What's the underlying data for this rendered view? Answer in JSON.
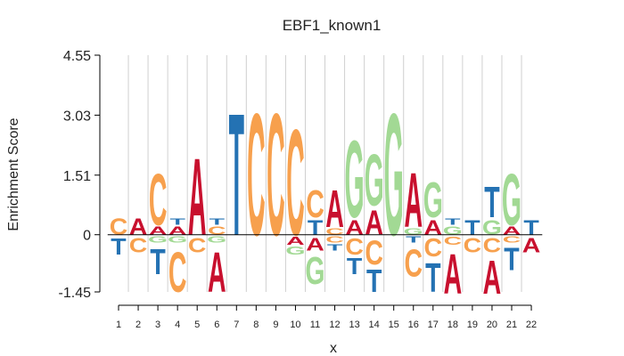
{
  "chart_data": {
    "type": "sequence-logo",
    "title": "EBF1_known1",
    "xlabel": "x",
    "ylabel": "Enrichment Score",
    "ylim": [
      -1.45,
      4.55
    ],
    "yticks": [
      "4.55",
      "3.03",
      "1.51",
      "0",
      "-1.45"
    ],
    "ytick_values": [
      4.55,
      3.03,
      1.51,
      0,
      -1.45
    ],
    "grid": "vertical",
    "colors": {
      "A": "#c8102e",
      "C": "#f7a04d",
      "G": "#a2d994",
      "T": "#2472b3"
    },
    "positions": [
      {
        "x": "1",
        "pos": [
          {
            "b": "C",
            "h": 0.5
          }
        ],
        "neg": [
          {
            "b": "T",
            "h": 0.5
          }
        ]
      },
      {
        "x": "2",
        "pos": [
          {
            "b": "A",
            "h": 0.5
          }
        ],
        "neg": [
          {
            "b": "C",
            "h": 0.45
          }
        ]
      },
      {
        "x": "3",
        "pos": [
          {
            "b": "A",
            "h": 0.25
          },
          {
            "b": "C",
            "h": 1.6
          }
        ],
        "neg": [
          {
            "b": "G",
            "h": 0.2
          },
          {
            "b": "T",
            "h": 0.8
          }
        ]
      },
      {
        "x": "4",
        "pos": [
          {
            "b": "A",
            "h": 0.25
          },
          {
            "b": "T",
            "h": 0.2
          }
        ],
        "neg": [
          {
            "b": "G",
            "h": 0.2
          },
          {
            "b": "C",
            "h": 1.25
          }
        ]
      },
      {
        "x": "5",
        "pos": [
          {
            "b": "A",
            "h": 2.4
          }
        ],
        "neg": [
          {
            "b": "C",
            "h": 0.45
          }
        ]
      },
      {
        "x": "6",
        "pos": [
          {
            "b": "C",
            "h": 0.25
          },
          {
            "b": "T",
            "h": 0.2
          }
        ],
        "neg": [
          {
            "b": "G",
            "h": 0.2
          },
          {
            "b": "A",
            "h": 1.25
          }
        ]
      },
      {
        "x": "7",
        "pos": [
          {
            "b": "T",
            "h": 3.8
          }
        ],
        "neg": []
      },
      {
        "x": "8",
        "pos": [
          {
            "b": "C",
            "h": 3.8
          }
        ],
        "neg": []
      },
      {
        "x": "9",
        "pos": [
          {
            "b": "C",
            "h": 3.8
          }
        ],
        "neg": []
      },
      {
        "x": "10",
        "pos": [
          {
            "b": "C",
            "h": 3.3
          }
        ],
        "neg": [
          {
            "b": "A",
            "h": 0.25
          },
          {
            "b": "G",
            "h": 0.25
          }
        ]
      },
      {
        "x": "11",
        "pos": [
          {
            "b": "T",
            "h": 0.45
          },
          {
            "b": "C",
            "h": 0.85
          }
        ],
        "neg": [
          {
            "b": "A",
            "h": 0.4
          },
          {
            "b": "G",
            "h": 0.85
          }
        ]
      },
      {
        "x": "12",
        "pos": [
          {
            "b": "C",
            "h": 0.2
          },
          {
            "b": "A",
            "h": 1.15
          }
        ],
        "neg": [
          {
            "b": "C",
            "h": 0.2
          },
          {
            "b": "T",
            "h": 0.2
          }
        ]
      },
      {
        "x": "13",
        "pos": [
          {
            "b": "A",
            "h": 0.45
          },
          {
            "b": "G",
            "h": 2.4
          }
        ],
        "neg": [
          {
            "b": "C",
            "h": 0.5
          },
          {
            "b": "T",
            "h": 0.5
          }
        ]
      },
      {
        "x": "14",
        "pos": [
          {
            "b": "A",
            "h": 0.75
          },
          {
            "b": "G",
            "h": 1.6
          }
        ],
        "neg": [
          {
            "b": "C",
            "h": 0.75
          },
          {
            "b": "T",
            "h": 0.7
          }
        ]
      },
      {
        "x": "15",
        "pos": [
          {
            "b": "G",
            "h": 3.8
          }
        ],
        "neg": []
      },
      {
        "x": "16",
        "pos": [
          {
            "b": "G",
            "h": 0.2
          },
          {
            "b": "A",
            "h": 1.7
          }
        ],
        "neg": [
          {
            "b": "T",
            "h": 0.2
          },
          {
            "b": "C",
            "h": 0.85
          }
        ]
      },
      {
        "x": "17",
        "pos": [
          {
            "b": "A",
            "h": 0.45
          },
          {
            "b": "G",
            "h": 1.1
          }
        ],
        "neg": [
          {
            "b": "C",
            "h": 0.55
          },
          {
            "b": "T",
            "h": 0.9
          }
        ]
      },
      {
        "x": "18",
        "pos": [
          {
            "b": "G",
            "h": 0.25
          },
          {
            "b": "T",
            "h": 0.2
          }
        ],
        "neg": [
          {
            "b": "C",
            "h": 0.25
          },
          {
            "b": "A",
            "h": 1.25
          }
        ]
      },
      {
        "x": "19",
        "pos": [
          {
            "b": "T",
            "h": 0.45
          }
        ],
        "neg": [
          {
            "b": "C",
            "h": 0.45
          }
        ]
      },
      {
        "x": "20",
        "pos": [
          {
            "b": "G",
            "h": 0.45
          },
          {
            "b": "T",
            "h": 0.95
          }
        ],
        "neg": [
          {
            "b": "C",
            "h": 0.45
          },
          {
            "b": "A",
            "h": 1.05
          }
        ]
      },
      {
        "x": "21",
        "pos": [
          {
            "b": "A",
            "h": 0.25
          },
          {
            "b": "G",
            "h": 1.6
          }
        ],
        "neg": [
          {
            "b": "C",
            "h": 0.2
          },
          {
            "b": "T",
            "h": 0.7
          }
        ]
      },
      {
        "x": "22",
        "pos": [
          {
            "b": "T",
            "h": 0.45
          }
        ],
        "neg": [
          {
            "b": "A",
            "h": 0.45
          }
        ]
      }
    ]
  }
}
